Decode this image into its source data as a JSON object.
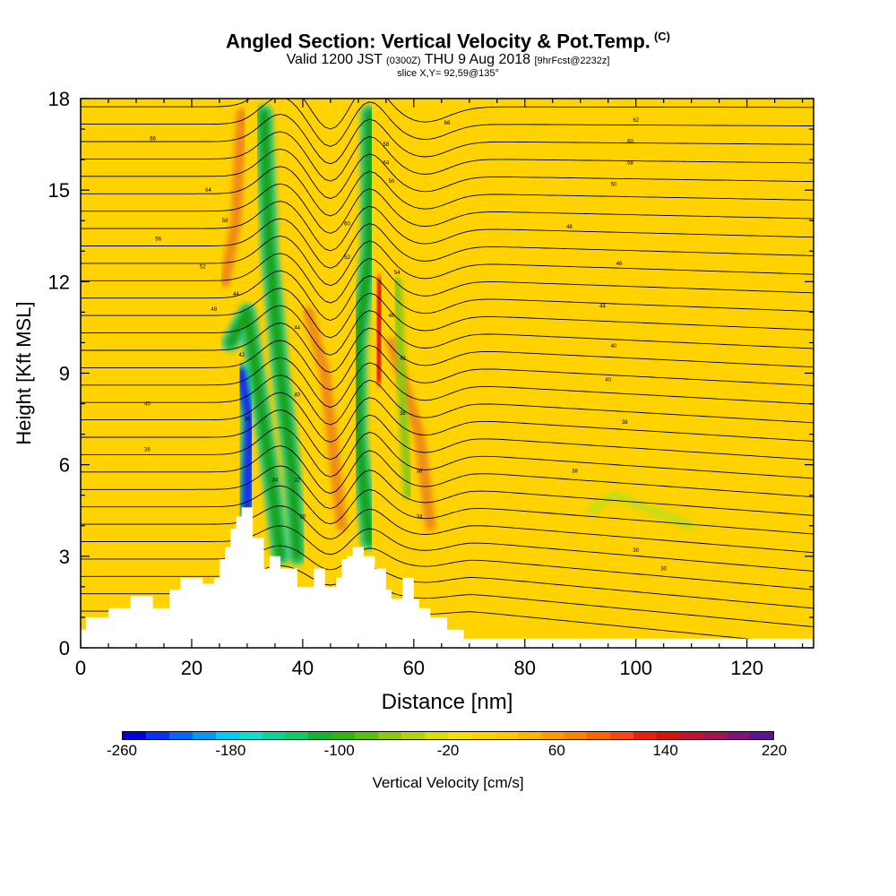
{
  "chart_data": {
    "type": "heatmap",
    "title": "Angled Section: Vertical Velocity & Pot.Temp.",
    "title_unit": "(C)",
    "subtitle_valid_prefix": "Valid 1200 JST",
    "subtitle_utc": "(0300Z)",
    "subtitle_date": "THU 9 Aug 2018",
    "subtitle_forecast": "[9hrFcst@2232z]",
    "slice_label": "slice X,Y= 92,59@135°",
    "xlabel": "Distance [nm]",
    "ylabel": "Height [Kft MSL]",
    "xlim": [
      0,
      132
    ],
    "ylim": [
      0,
      18
    ],
    "x_ticks": [
      0,
      20,
      40,
      60,
      80,
      100,
      120
    ],
    "y_ticks": [
      0,
      3,
      6,
      9,
      12,
      15,
      18
    ],
    "background_color": "#ffd200",
    "terrain": {
      "distance_nm": [
        0,
        1,
        1,
        5,
        5,
        9,
        9,
        13,
        13,
        16,
        16,
        18,
        18,
        22,
        22,
        24,
        24,
        25,
        25,
        26,
        26,
        27,
        27,
        28,
        28,
        29,
        29,
        31,
        31,
        33,
        33,
        34,
        34,
        36,
        36,
        39,
        39,
        42,
        42,
        44,
        44,
        46,
        46,
        47,
        47,
        48,
        48,
        49,
        49,
        51,
        51,
        53,
        53,
        55,
        55,
        56,
        56,
        58,
        58,
        60,
        60,
        61,
        61,
        63,
        63,
        66,
        66,
        69,
        69,
        72,
        72,
        132
      ],
      "height_kft": [
        0.6,
        0.6,
        1.0,
        1.0,
        1.3,
        1.3,
        1.7,
        1.7,
        1.3,
        1.3,
        1.9,
        1.9,
        2.3,
        2.3,
        2.1,
        2.1,
        2.3,
        2.3,
        2.9,
        2.9,
        3.3,
        3.3,
        3.9,
        3.9,
        4.3,
        4.3,
        4.6,
        4.6,
        3.6,
        3.6,
        2.6,
        2.6,
        3.0,
        3.0,
        2.6,
        2.6,
        2.0,
        2.0,
        2.6,
        2.6,
        2.0,
        2.0,
        2.3,
        2.3,
        2.9,
        2.9,
        3.0,
        3.0,
        3.3,
        3.3,
        3.0,
        3.0,
        2.6,
        2.6,
        1.9,
        1.9,
        1.6,
        1.6,
        2.3,
        2.3,
        1.6,
        1.6,
        1.3,
        1.3,
        1.0,
        1.0,
        0.6,
        0.6,
        0.3,
        0.3,
        0.3,
        0.3
      ]
    },
    "vertical_velocity_features": [
      {
        "kind": "updraft",
        "color": "#e61414",
        "points": [
          [
            41,
            3.6
          ],
          [
            41,
            6.8
          ]
        ],
        "peak_cm_s": 160
      },
      {
        "kind": "updraft",
        "color": "#e61414",
        "points": [
          [
            53.5,
            8.8
          ],
          [
            54,
            12
          ]
        ],
        "peak_cm_s": 150
      },
      {
        "kind": "updraft",
        "color": "#f08c14",
        "points": [
          [
            47,
            4
          ],
          [
            44,
            9
          ],
          [
            41,
            11
          ]
        ],
        "peak_cm_s": 60
      },
      {
        "kind": "updraft",
        "color": "#f08c14",
        "points": [
          [
            56,
            10
          ],
          [
            61,
            7
          ],
          [
            63,
            4
          ]
        ],
        "peak_cm_s": 60
      },
      {
        "kind": "updraft",
        "color": "#f08c14",
        "points": [
          [
            26,
            12
          ],
          [
            28,
            14
          ],
          [
            29,
            17.5
          ]
        ],
        "peak_cm_s": 40
      },
      {
        "kind": "downdraft",
        "color": "#1432e6",
        "points": [
          [
            30,
            4.5
          ],
          [
            30.5,
            7.5
          ],
          [
            29,
            9
          ]
        ],
        "peak_cm_s": -260
      },
      {
        "kind": "downdraft",
        "color": "#14a014",
        "points": [
          [
            27,
            10
          ],
          [
            30,
            11
          ],
          [
            34,
            6
          ],
          [
            36,
            3
          ]
        ],
        "peak_cm_s": -120
      },
      {
        "kind": "downdraft",
        "color": "#14a014",
        "points": [
          [
            39,
            3
          ],
          [
            38,
            6
          ],
          [
            36,
            9
          ],
          [
            34,
            13
          ],
          [
            33,
            17.5
          ]
        ],
        "peak_cm_s": -100
      },
      {
        "kind": "downdraft",
        "color": "#14a014",
        "points": [
          [
            52,
            3.5
          ],
          [
            50,
            7
          ],
          [
            50,
            10
          ],
          [
            52,
            13
          ],
          [
            52,
            17.5
          ]
        ],
        "peak_cm_s": -120
      },
      {
        "kind": "downdraft",
        "color": "#8cc814",
        "points": [
          [
            59,
            5
          ],
          [
            58,
            8
          ],
          [
            57,
            12
          ]
        ],
        "peak_cm_s": -40
      },
      {
        "kind": "downdraft",
        "color": "#c8dc14",
        "points": [
          [
            92,
            4.5
          ],
          [
            96,
            5
          ],
          [
            103,
            4.5
          ],
          [
            110,
            4
          ]
        ],
        "peak_cm_s": -20
      }
    ],
    "potential_temperature_contours": {
      "labeled_values_c": [
        30,
        32,
        34,
        36,
        38,
        40,
        42,
        44,
        46,
        48,
        50,
        52,
        54,
        56,
        58,
        60,
        62,
        64,
        66
      ],
      "label_samples": [
        {
          "x": 100,
          "y": 3.2,
          "text": "30"
        },
        {
          "x": 105,
          "y": 2.6,
          "text": "30"
        },
        {
          "x": 89,
          "y": 5.8,
          "text": "38"
        },
        {
          "x": 98,
          "y": 7.4,
          "text": "38"
        },
        {
          "x": 95,
          "y": 8.8,
          "text": "40"
        },
        {
          "x": 96,
          "y": 9.9,
          "text": "40"
        },
        {
          "x": 94,
          "y": 11.2,
          "text": "44"
        },
        {
          "x": 97,
          "y": 12.6,
          "text": "46"
        },
        {
          "x": 88,
          "y": 13.8,
          "text": "48"
        },
        {
          "x": 96,
          "y": 15.2,
          "text": "50"
        },
        {
          "x": 99,
          "y": 15.9,
          "text": "58"
        },
        {
          "x": 99,
          "y": 16.6,
          "text": "60"
        },
        {
          "x": 100,
          "y": 17.3,
          "text": "62"
        },
        {
          "x": 66,
          "y": 17.2,
          "text": "66"
        },
        {
          "x": 13,
          "y": 16.7,
          "text": "66"
        },
        {
          "x": 23,
          "y": 15.0,
          "text": "64"
        },
        {
          "x": 26,
          "y": 14.0,
          "text": "58"
        },
        {
          "x": 14,
          "y": 13.4,
          "text": "56"
        },
        {
          "x": 22,
          "y": 12.5,
          "text": "52"
        },
        {
          "x": 24,
          "y": 11.1,
          "text": "48"
        },
        {
          "x": 28,
          "y": 11.6,
          "text": "44"
        },
        {
          "x": 29,
          "y": 9.6,
          "text": "42"
        },
        {
          "x": 12,
          "y": 8.0,
          "text": "40"
        },
        {
          "x": 12,
          "y": 6.5,
          "text": "38"
        },
        {
          "x": 30,
          "y": 7.5,
          "text": "36"
        },
        {
          "x": 35,
          "y": 5.5,
          "text": "34"
        },
        {
          "x": 39,
          "y": 5.5,
          "text": "32"
        },
        {
          "x": 40,
          "y": 4.3,
          "text": "30"
        },
        {
          "x": 39,
          "y": 8.3,
          "text": "40"
        },
        {
          "x": 39,
          "y": 10.5,
          "text": "44"
        },
        {
          "x": 48,
          "y": 13.9,
          "text": "60"
        },
        {
          "x": 48,
          "y": 12.8,
          "text": "52"
        },
        {
          "x": 57,
          "y": 12.3,
          "text": "54"
        },
        {
          "x": 56,
          "y": 10.9,
          "text": "46"
        },
        {
          "x": 58,
          "y": 9.5,
          "text": "42"
        },
        {
          "x": 58,
          "y": 7.7,
          "text": "38"
        },
        {
          "x": 61,
          "y": 5.8,
          "text": "36"
        },
        {
          "x": 61,
          "y": 4.3,
          "text": "34"
        },
        {
          "x": 55,
          "y": 15.9,
          "text": "64"
        },
        {
          "x": 55,
          "y": 16.5,
          "text": "58"
        },
        {
          "x": 56,
          "y": 15.3,
          "text": "56"
        }
      ]
    },
    "colorbar": {
      "label": "Vertical Velocity [cm/s]",
      "ticks": [
        "-260",
        "-180",
        "-100",
        "-20",
        "60",
        "140",
        "220"
      ],
      "range": [
        -260,
        220
      ],
      "colors": [
        "#0000dc",
        "#0a32f0",
        "#0a64f5",
        "#0a96f5",
        "#0ac8f0",
        "#14dcc8",
        "#14d296",
        "#14c864",
        "#14b432",
        "#32b414",
        "#5abe14",
        "#8cc814",
        "#b4d214",
        "#dcdc14",
        "#f0e114",
        "#ffd200",
        "#ffc800",
        "#ffb400",
        "#ff9b00",
        "#ff8200",
        "#ff6400",
        "#f54614",
        "#e61e14",
        "#d2140a",
        "#be1432",
        "#a01450",
        "#821478",
        "#5a1496"
      ]
    }
  }
}
